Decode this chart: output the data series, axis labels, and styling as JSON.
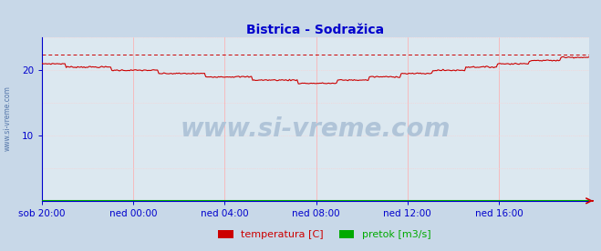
{
  "title": "Bistrica - Sodražica",
  "title_color": "#0000cc",
  "title_fontsize": 10,
  "bg_color": "#c8d8e8",
  "plot_bg_color": "#dce8f0",
  "grid_color_v": "#ffaaaa",
  "grid_color_h": "#ffcccc",
  "axis_color": "#0000cc",
  "ylim": [
    0,
    25
  ],
  "yticks": [
    10,
    20
  ],
  "xlabel_ticks": [
    "sob 20:00",
    "ned 00:00",
    "ned 04:00",
    "ned 08:00",
    "ned 12:00",
    "ned 16:00"
  ],
  "xlabel_tick_pos": [
    0,
    72,
    144,
    216,
    288,
    360
  ],
  "total_points": 432,
  "dashed_line_y": 22.4,
  "temp_start": 21.0,
  "temp_valley": 18.0,
  "temp_valley_x": 220,
  "temp_end": 22.2,
  "pretok_value": 0.1,
  "legend_items": [
    {
      "label": "temperatura [C]",
      "color": "#cc0000"
    },
    {
      "label": "pretok [m3/s]",
      "color": "#00aa00"
    }
  ],
  "watermark_text": "www.si-vreme.com",
  "watermark_color": "#b0c4d8",
  "sidebar_text": "www.si-vreme.com",
  "sidebar_color": "#5577aa"
}
